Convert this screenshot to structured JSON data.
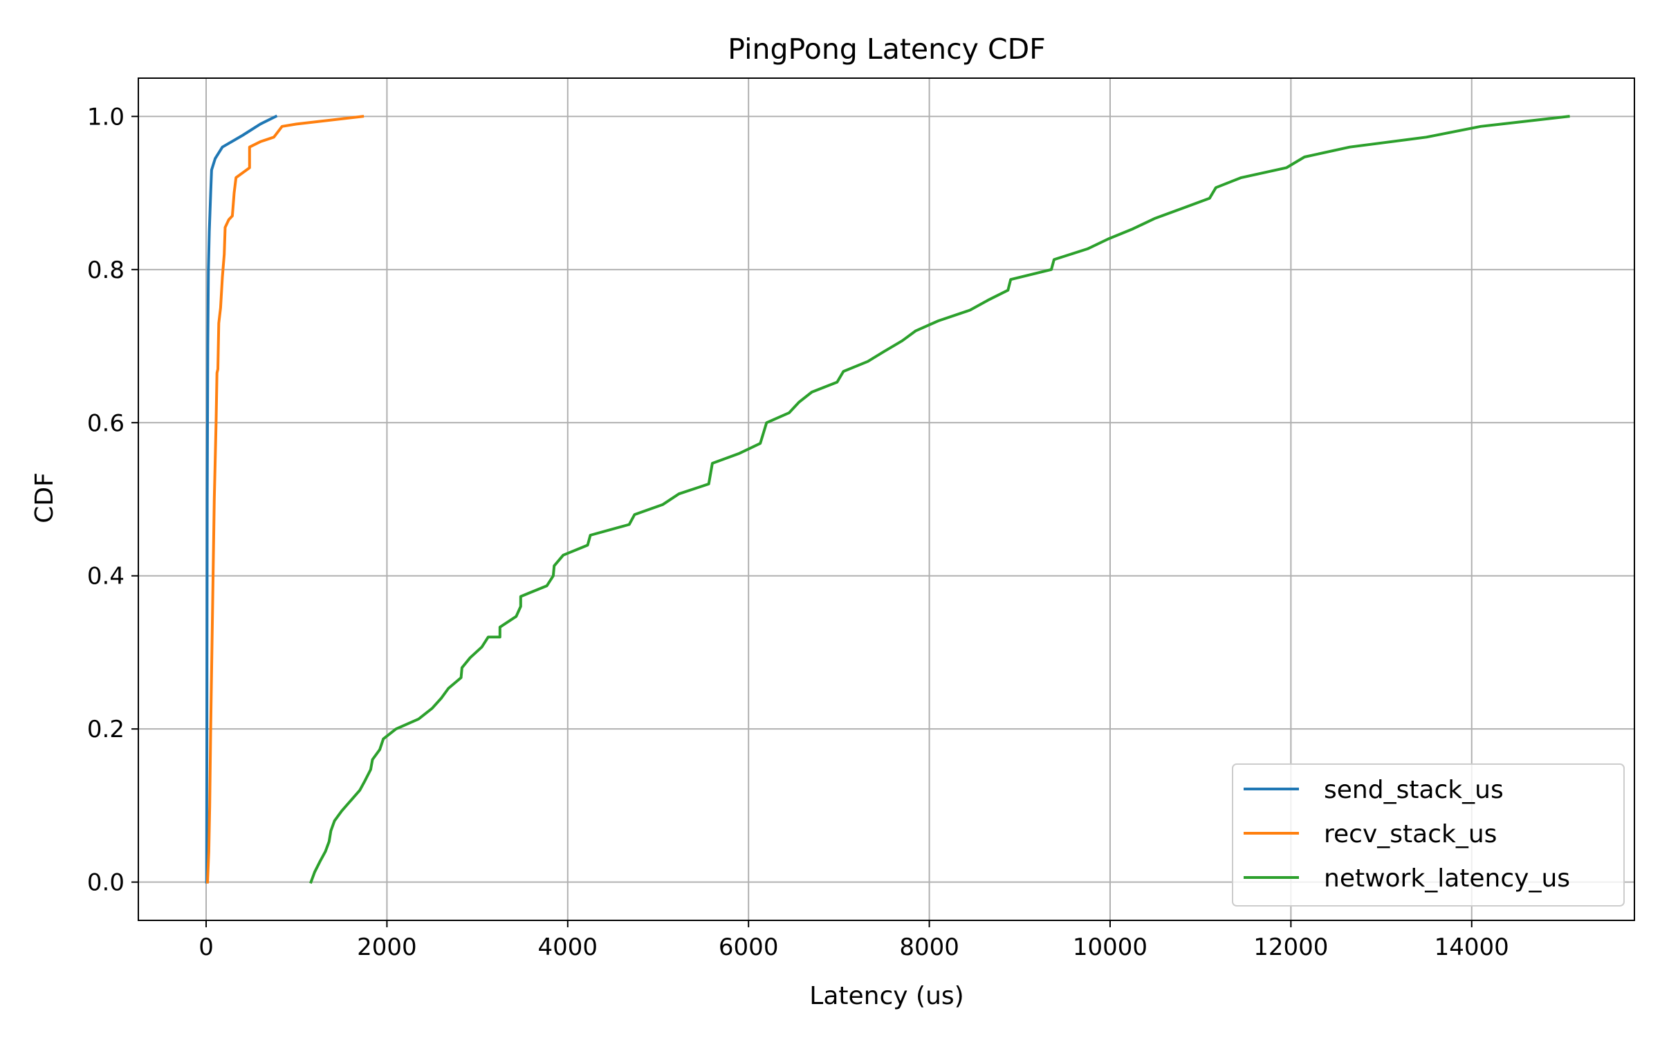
{
  "chart_data": {
    "type": "line",
    "title": "PingPong Latency CDF",
    "xlabel": "Latency (us)",
    "ylabel": "CDF",
    "xlim": [
      -750,
      15800
    ],
    "ylim": [
      -0.05,
      1.05
    ],
    "xticks": [
      0,
      2000,
      4000,
      6000,
      8000,
      10000,
      12000,
      14000
    ],
    "xtick_labels": [
      "0",
      "2000",
      "4000",
      "6000",
      "8000",
      "10000",
      "12000",
      "14000"
    ],
    "yticks": [
      0.0,
      0.2,
      0.4,
      0.6,
      0.8,
      1.0
    ],
    "ytick_labels": [
      "0.0",
      "0.2",
      "0.4",
      "0.6",
      "0.8",
      "1.0"
    ],
    "grid": true,
    "legend_position": "lower-right",
    "series": [
      {
        "name": "send_stack_us",
        "color": "#1f77b4",
        "points": [
          [
            5,
            0.0
          ],
          [
            8,
            0.2
          ],
          [
            12,
            0.5
          ],
          [
            18,
            0.7
          ],
          [
            25,
            0.8
          ],
          [
            35,
            0.85
          ],
          [
            50,
            0.9
          ],
          [
            60,
            0.93
          ],
          [
            100,
            0.945
          ],
          [
            180,
            0.96
          ],
          [
            400,
            0.975
          ],
          [
            600,
            0.99
          ],
          [
            770,
            1.0
          ]
        ]
      },
      {
        "name": "recv_stack_us",
        "color": "#ff7f0e",
        "points": [
          [
            15,
            0.0
          ],
          [
            30,
            0.04
          ],
          [
            40,
            0.1
          ],
          [
            50,
            0.2
          ],
          [
            70,
            0.35
          ],
          [
            90,
            0.5
          ],
          [
            100,
            0.55
          ],
          [
            110,
            0.6
          ],
          [
            120,
            0.665
          ],
          [
            130,
            0.67
          ],
          [
            140,
            0.73
          ],
          [
            160,
            0.75
          ],
          [
            180,
            0.79
          ],
          [
            200,
            0.82
          ],
          [
            210,
            0.855
          ],
          [
            250,
            0.865
          ],
          [
            290,
            0.87
          ],
          [
            310,
            0.9
          ],
          [
            330,
            0.92
          ],
          [
            480,
            0.933
          ],
          [
            480,
            0.96
          ],
          [
            600,
            0.967
          ],
          [
            750,
            0.973
          ],
          [
            840,
            0.987
          ],
          [
            1000,
            0.99
          ],
          [
            1730,
            1.0
          ]
        ]
      },
      {
        "name": "network_latency_us",
        "color": "#2ca02c",
        "points": [
          [
            1160,
            0.0
          ],
          [
            1200,
            0.013
          ],
          [
            1260,
            0.027
          ],
          [
            1320,
            0.04
          ],
          [
            1360,
            0.053
          ],
          [
            1380,
            0.067
          ],
          [
            1420,
            0.08
          ],
          [
            1500,
            0.093
          ],
          [
            1700,
            0.12
          ],
          [
            1760,
            0.133
          ],
          [
            1820,
            0.147
          ],
          [
            1840,
            0.16
          ],
          [
            1920,
            0.173
          ],
          [
            1960,
            0.187
          ],
          [
            2100,
            0.2
          ],
          [
            2350,
            0.213
          ],
          [
            2500,
            0.227
          ],
          [
            2600,
            0.24
          ],
          [
            2680,
            0.253
          ],
          [
            2820,
            0.267
          ],
          [
            2830,
            0.28
          ],
          [
            2920,
            0.293
          ],
          [
            3050,
            0.307
          ],
          [
            3120,
            0.32
          ],
          [
            3250,
            0.32
          ],
          [
            3250,
            0.333
          ],
          [
            3430,
            0.347
          ],
          [
            3480,
            0.36
          ],
          [
            3480,
            0.373
          ],
          [
            3770,
            0.387
          ],
          [
            3840,
            0.4
          ],
          [
            3850,
            0.413
          ],
          [
            3950,
            0.427
          ],
          [
            4220,
            0.44
          ],
          [
            4250,
            0.453
          ],
          [
            4680,
            0.467
          ],
          [
            4740,
            0.48
          ],
          [
            5050,
            0.493
          ],
          [
            5230,
            0.507
          ],
          [
            5560,
            0.52
          ],
          [
            5600,
            0.547
          ],
          [
            5900,
            0.56
          ],
          [
            6130,
            0.573
          ],
          [
            6200,
            0.6
          ],
          [
            6450,
            0.613
          ],
          [
            6560,
            0.627
          ],
          [
            6700,
            0.64
          ],
          [
            6980,
            0.653
          ],
          [
            7050,
            0.667
          ],
          [
            7320,
            0.68
          ],
          [
            7500,
            0.693
          ],
          [
            7700,
            0.707
          ],
          [
            7850,
            0.72
          ],
          [
            8100,
            0.733
          ],
          [
            8450,
            0.747
          ],
          [
            8650,
            0.76
          ],
          [
            8870,
            0.773
          ],
          [
            8900,
            0.787
          ],
          [
            9350,
            0.8
          ],
          [
            9380,
            0.813
          ],
          [
            9750,
            0.827
          ],
          [
            9980,
            0.84
          ],
          [
            10250,
            0.853
          ],
          [
            10500,
            0.867
          ],
          [
            10800,
            0.88
          ],
          [
            11100,
            0.893
          ],
          [
            11170,
            0.907
          ],
          [
            11450,
            0.92
          ],
          [
            11950,
            0.933
          ],
          [
            12150,
            0.947
          ],
          [
            12650,
            0.96
          ],
          [
            13500,
            0.973
          ],
          [
            14100,
            0.987
          ],
          [
            15070,
            1.0
          ]
        ]
      }
    ]
  }
}
